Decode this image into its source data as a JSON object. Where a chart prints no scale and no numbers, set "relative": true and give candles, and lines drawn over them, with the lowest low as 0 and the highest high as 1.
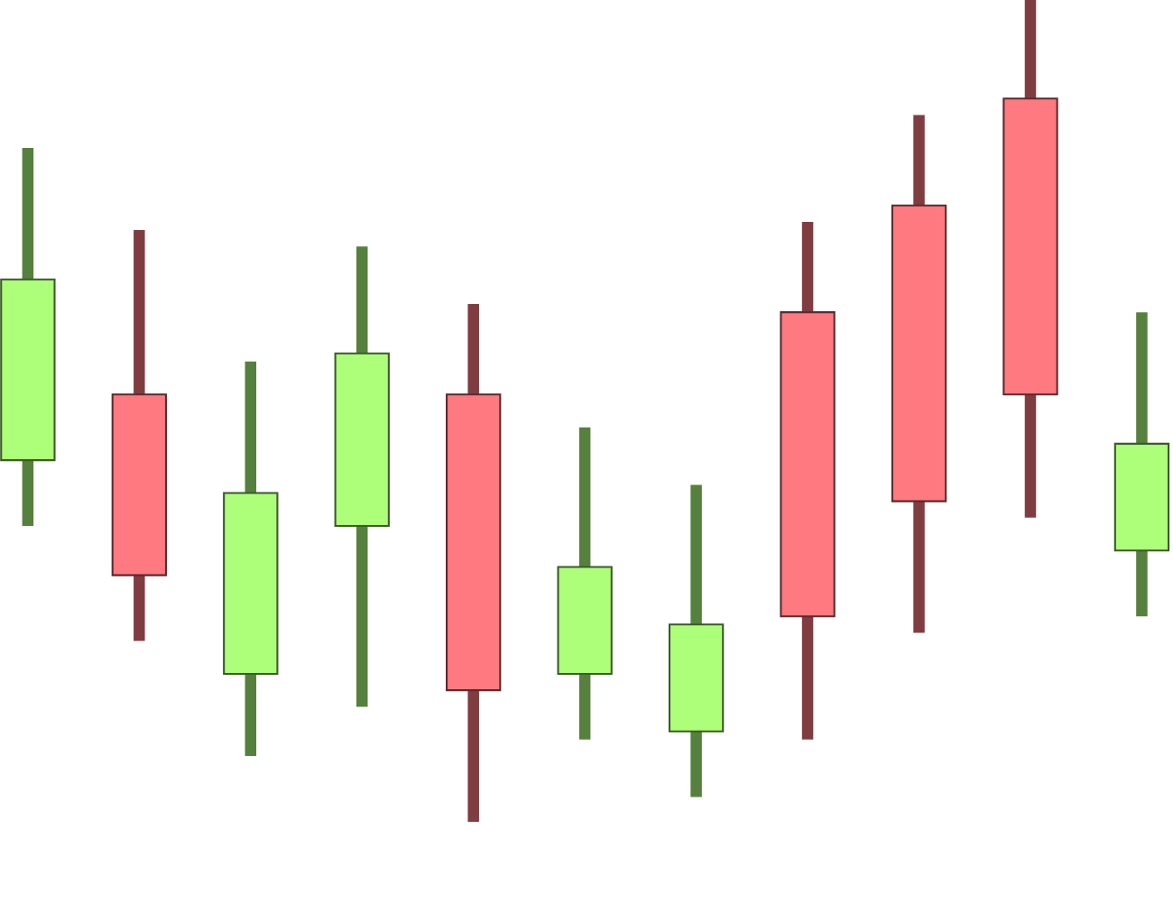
{
  "chart_data": {
    "type": "candlestick",
    "relative": true,
    "categories": [
      null,
      null,
      null,
      null,
      null,
      null,
      null,
      null,
      null,
      null,
      null
    ],
    "ohlc": [
      [
        0.44,
        0.82,
        0.36,
        0.66
      ],
      [
        0.52,
        0.72,
        0.22,
        0.3
      ],
      [
        0.18,
        0.56,
        0.08,
        0.4
      ],
      [
        0.36,
        0.7,
        0.14,
        0.57
      ],
      [
        0.52,
        0.63,
        0.0,
        0.16
      ],
      [
        0.18,
        0.48,
        0.1,
        0.31
      ],
      [
        0.11,
        0.41,
        0.03,
        0.24
      ],
      [
        0.62,
        0.73,
        0.1,
        0.25
      ],
      [
        0.75,
        0.86,
        0.23,
        0.39
      ],
      [
        0.88,
        1.0,
        0.37,
        0.52
      ],
      [
        0.33,
        0.62,
        0.25,
        0.46
      ]
    ],
    "colors": [
      "#adff7a",
      "#ff7a80",
      "#adff7a",
      "#adff7a",
      "#ff7a80",
      "#adff7a",
      "#adff7a",
      "#ff7a80",
      "#ff7a80",
      "#ff7a80",
      "#adff7a"
    ]
  }
}
